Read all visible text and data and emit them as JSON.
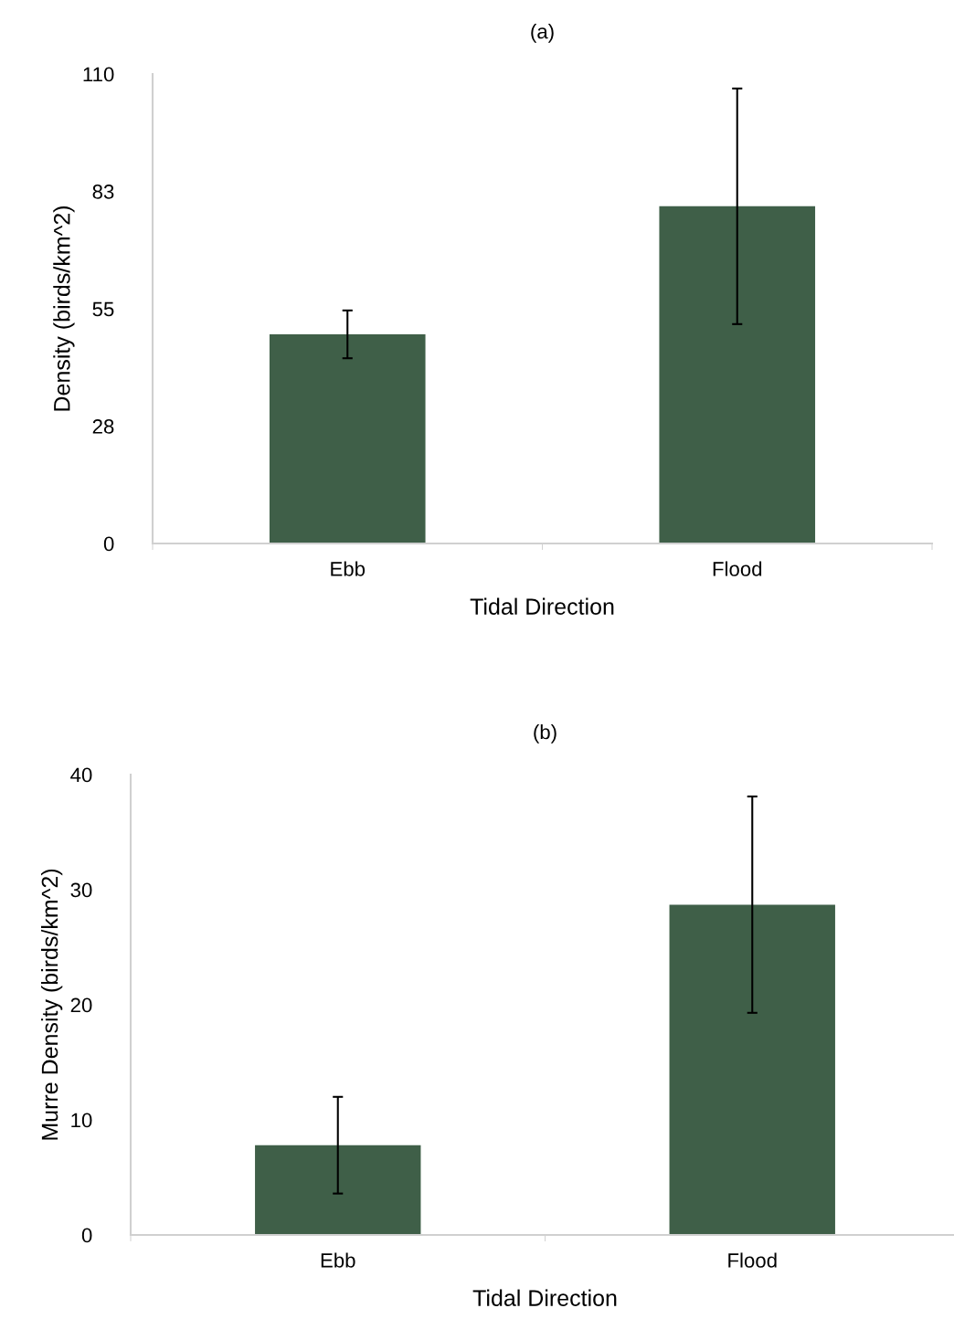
{
  "chart_data": [
    {
      "type": "bar",
      "title": "(a)",
      "xlabel": "Tidal Direction",
      "ylabel": "Density (birds/km^2)",
      "categories": [
        "Ebb",
        "Flood"
      ],
      "values": [
        49,
        79
      ],
      "errors": [
        5.6,
        27.6
      ],
      "color": "#3f5f48",
      "ylim": [
        0,
        110
      ],
      "yticks": [
        0,
        {
          "value": 27.5,
          "label": "28"
        },
        55,
        {
          "value": 82.5,
          "label": "83"
        },
        110
      ]
    },
    {
      "type": "bar",
      "title": "(b)",
      "xlabel": "Tidal Direction",
      "ylabel": "Murre Density (birds/km^2)",
      "categories": [
        "Ebb",
        "Flood"
      ],
      "values": [
        7.8,
        28.7
      ],
      "errors": [
        4.2,
        9.4
      ],
      "color": "#3f5f48",
      "ylim": [
        0,
        40
      ],
      "yticks": [
        0,
        10,
        20,
        30,
        40
      ]
    }
  ]
}
